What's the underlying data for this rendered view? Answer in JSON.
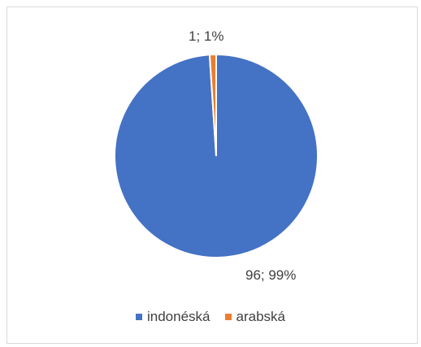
{
  "chart_data": {
    "type": "pie",
    "title": "",
    "categories": [
      "indonéská",
      "arabská"
    ],
    "values": [
      96,
      1
    ],
    "percentages": [
      "99%",
      "1%"
    ],
    "data_labels": [
      "96; 99%",
      "1; 1%"
    ],
    "colors": [
      "#4472C4",
      "#ED7D31"
    ],
    "legend_position": "bottom",
    "legend": [
      "indonéská",
      "arabská"
    ]
  }
}
